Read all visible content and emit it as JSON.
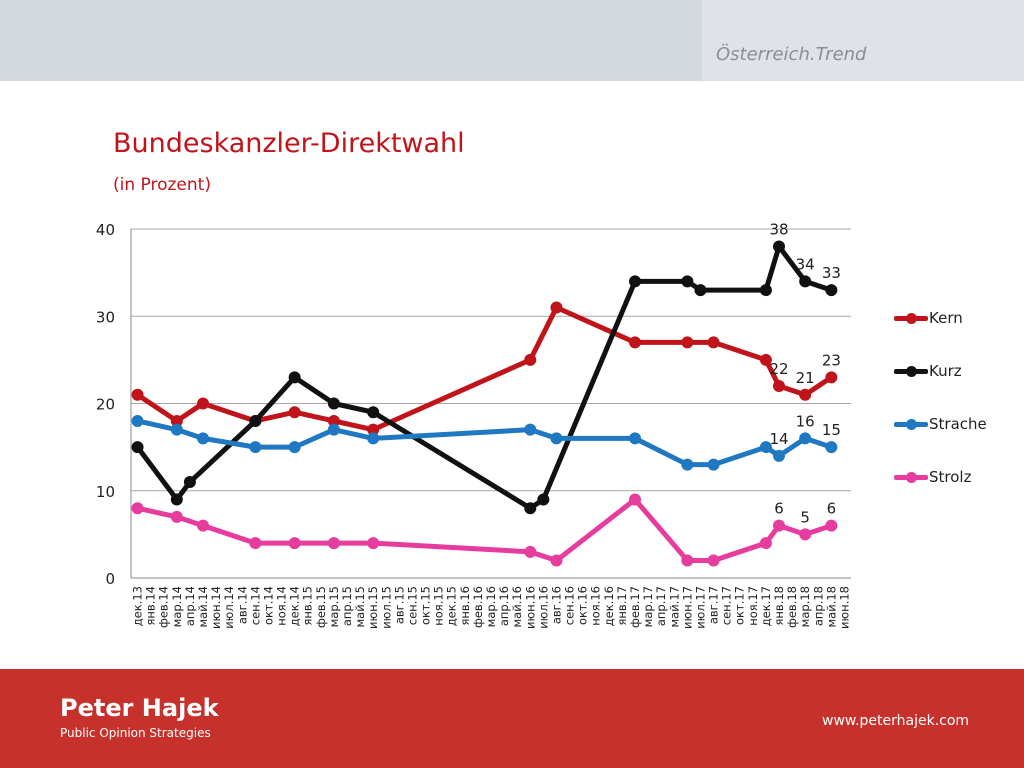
{
  "header": {
    "brand": "Österreich.Trend"
  },
  "title": "Bundeskanzler-Direktwahl",
  "subtitle": "(in Prozent)",
  "footer": {
    "company": "Peter Hajek",
    "tagline": "Public Opinion Strategies",
    "url": "www.peterhajek.com"
  },
  "chart_data": {
    "type": "line",
    "ylim": [
      0,
      40
    ],
    "yticks": [
      0,
      10,
      20,
      30,
      40
    ],
    "grid": true,
    "legend_position": "right",
    "categories": [
      "дек.13",
      "янв.14",
      "фев.14",
      "мар.14",
      "апр.14",
      "май.14",
      "июн.14",
      "июл.14",
      "авг.14",
      "сен.14",
      "окт.14",
      "ноя.14",
      "дек.14",
      "янв.15",
      "фев.15",
      "мар.15",
      "апр.15",
      "май.15",
      "июн.15",
      "июл.15",
      "авг.15",
      "сен.15",
      "окт.15",
      "ноя.15",
      "дек.15",
      "янв.16",
      "фев.16",
      "мар.16",
      "апр.16",
      "май.16",
      "июн.16",
      "июл.16",
      "авг.16",
      "сен.16",
      "окт.16",
      "ноя.16",
      "дек.16",
      "янв.17",
      "фев.17",
      "мар.17",
      "апр.17",
      "май.17",
      "июн.17",
      "июл.17",
      "авг.17",
      "сен.17",
      "окт.17",
      "ноя.17",
      "дек.17",
      "янв.18",
      "фев.18",
      "мар.18",
      "апр.18",
      "май.18",
      "июн.18"
    ],
    "series": [
      {
        "name": "Kern",
        "color": "#c0141a",
        "points": [
          [
            "дек.13",
            21
          ],
          [
            "мар.14",
            18
          ],
          [
            "май.14",
            20
          ],
          [
            "сен.14",
            18
          ],
          [
            "дек.14",
            19
          ],
          [
            "мар.15",
            18
          ],
          [
            "июн.15",
            17
          ],
          [
            "июн.16",
            25
          ],
          [
            "авг.16",
            31
          ],
          [
            "фев.17",
            27
          ],
          [
            "июн.17",
            27
          ],
          [
            "авг.17",
            27
          ],
          [
            "дек.17",
            25
          ],
          [
            "янв.18",
            22
          ],
          [
            "мар.18",
            21
          ],
          [
            "май.18",
            23
          ]
        ],
        "labels": [
          [
            "янв.18",
            22
          ],
          [
            "мар.18",
            21
          ],
          [
            "май.18",
            23
          ]
        ]
      },
      {
        "name": "Kurz",
        "color": "#111111",
        "points": [
          [
            "дек.13",
            15
          ],
          [
            "мар.14",
            9
          ],
          [
            "апр.14",
            11
          ],
          [
            "сен.14",
            18
          ],
          [
            "дек.14",
            23
          ],
          [
            "мар.15",
            20
          ],
          [
            "июн.15",
            19
          ],
          [
            "июн.16",
            8
          ],
          [
            "июл.16",
            9
          ],
          [
            "фев.17",
            34
          ],
          [
            "июн.17",
            34
          ],
          [
            "июл.17",
            33
          ],
          [
            "дек.17",
            33
          ],
          [
            "янв.18",
            38
          ],
          [
            "мар.18",
            34
          ],
          [
            "май.18",
            33
          ]
        ],
        "labels": [
          [
            "янв.18",
            38
          ],
          [
            "мар.18",
            34
          ],
          [
            "май.18",
            33
          ]
        ]
      },
      {
        "name": "Strache",
        "color": "#1f78c1",
        "points": [
          [
            "дек.13",
            18
          ],
          [
            "мар.14",
            17
          ],
          [
            "май.14",
            16
          ],
          [
            "сен.14",
            15
          ],
          [
            "дек.14",
            15
          ],
          [
            "мар.15",
            17
          ],
          [
            "июн.15",
            16
          ],
          [
            "июн.16",
            17
          ],
          [
            "авг.16",
            16
          ],
          [
            "фев.17",
            16
          ],
          [
            "июн.17",
            13
          ],
          [
            "авг.17",
            13
          ],
          [
            "дек.17",
            15
          ],
          [
            "янв.18",
            14
          ],
          [
            "мар.18",
            16
          ],
          [
            "май.18",
            15
          ]
        ],
        "labels": [
          [
            "янв.18",
            14
          ],
          [
            "мар.18",
            16
          ],
          [
            "май.18",
            15
          ]
        ]
      },
      {
        "name": "Strolz",
        "color": "#e63c9e",
        "points": [
          [
            "дек.13",
            8
          ],
          [
            "мар.14",
            7
          ],
          [
            "май.14",
            6
          ],
          [
            "сен.14",
            4
          ],
          [
            "дек.14",
            4
          ],
          [
            "мар.15",
            4
          ],
          [
            "июн.15",
            4
          ],
          [
            "июн.16",
            3
          ],
          [
            "авг.16",
            2
          ],
          [
            "фев.17",
            9
          ],
          [
            "июн.17",
            2
          ],
          [
            "авг.17",
            2
          ],
          [
            "дек.17",
            4
          ],
          [
            "янв.18",
            6
          ],
          [
            "мар.18",
            5
          ],
          [
            "май.18",
            6
          ]
        ],
        "labels": [
          [
            "янв.18",
            6
          ],
          [
            "мар.18",
            5
          ],
          [
            "май.18",
            6
          ]
        ]
      }
    ]
  }
}
